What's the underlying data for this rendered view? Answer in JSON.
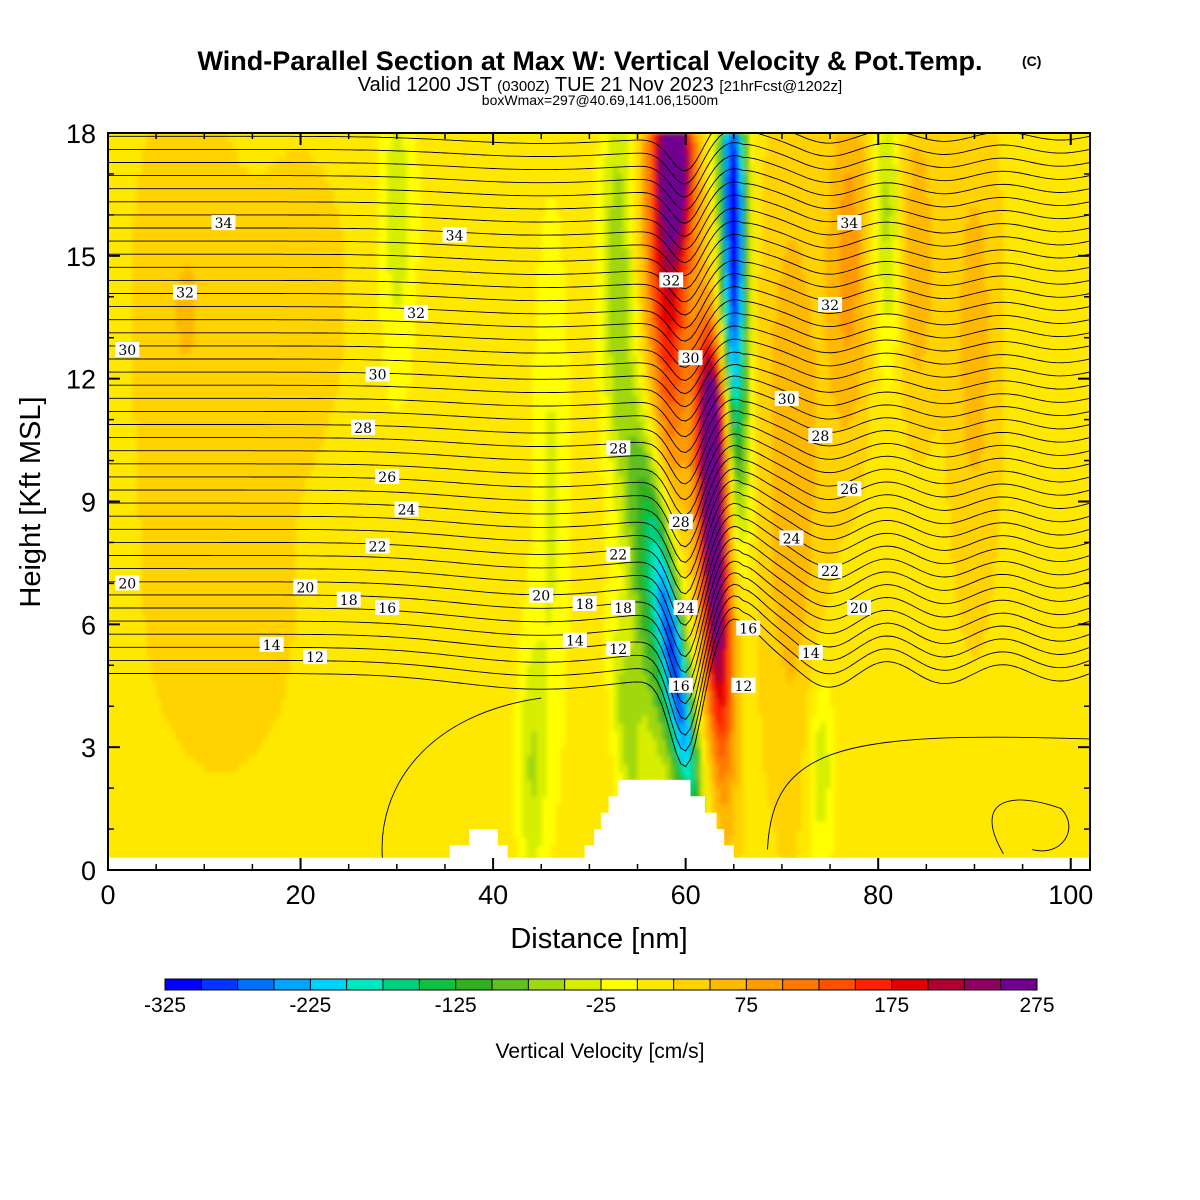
{
  "title": {
    "main": "Wind-Parallel Section at Max W: Vertical Velocity & Pot.Temp.",
    "copyright": "(C)",
    "valid_prefix": "Valid 1200 JST",
    "valid_zulu": "(0300Z)",
    "valid_date": "TUE 21 Nov 2023",
    "forecast": "[21hrFcst@1202z]",
    "boxinfo": "boxWmax=297@40.69,141.06,1500m"
  },
  "chart_data": {
    "type": "heatmap",
    "xlabel": "Distance [nm]",
    "ylabel": "Height [Kft MSL]",
    "xlim": [
      0,
      102
    ],
    "ylim": [
      0,
      18
    ],
    "x_ticks": [
      0,
      20,
      40,
      60,
      80,
      100
    ],
    "y_ticks": [
      0,
      3,
      6,
      9,
      12,
      15,
      18
    ],
    "colorbar": {
      "label": "Vertical Velocity [cm/s]",
      "tick_labels": [
        "-325",
        "-225",
        "-125",
        "-25",
        "75",
        "175",
        "275"
      ],
      "levels": [
        -325,
        -300,
        -275,
        -250,
        -225,
        -200,
        -175,
        -150,
        -125,
        -100,
        -75,
        -50,
        -25,
        0,
        25,
        50,
        75,
        100,
        125,
        150,
        175,
        200,
        225,
        250,
        275
      ],
      "colors": [
        "#0000ff",
        "#0035ff",
        "#0070ff",
        "#00a5ff",
        "#00d2ff",
        "#00e8c0",
        "#00d080",
        "#10c040",
        "#30b020",
        "#60c020",
        "#a0d810",
        "#d8ee00",
        "#ffff00",
        "#ffe800",
        "#ffd200",
        "#ffb800",
        "#ff9a00",
        "#ff7800",
        "#ff5000",
        "#ff2000",
        "#e00000",
        "#b00030",
        "#900060",
        "#700090"
      ]
    },
    "vertical_velocity_features": [
      {
        "x": 58,
        "y": 14.5,
        "value": 175,
        "sx": 1.6,
        "sy": 3.5,
        "tilt": -0.12
      },
      {
        "x": 59,
        "y": 17.5,
        "value": 250,
        "sx": 1.3,
        "sy": 1.6,
        "tilt": -0.1
      },
      {
        "x": 63,
        "y": 7.5,
        "value": 275,
        "sx": 1.1,
        "sy": 3.5,
        "tilt": -0.17
      },
      {
        "x": 63,
        "y": 11,
        "value": 175,
        "sx": 1.0,
        "sy": 1.5,
        "tilt": -0.1
      },
      {
        "x": 65,
        "y": 16.5,
        "value": -325,
        "sx": 0.9,
        "sy": 2.5,
        "tilt": -0.08
      },
      {
        "x": 65,
        "y": 12,
        "value": -175,
        "sx": 0.9,
        "sy": 2.6,
        "tilt": -0.15
      },
      {
        "x": 59,
        "y": 4.8,
        "value": -275,
        "sx": 1.0,
        "sy": 2.8,
        "tilt": -0.5
      },
      {
        "x": 56,
        "y": 7,
        "value": -125,
        "sx": 1.4,
        "sy": 3.2,
        "tilt": -0.35
      },
      {
        "x": 54,
        "y": 3.5,
        "value": -75,
        "sx": 1.0,
        "sy": 1.8,
        "tilt": -0.3
      },
      {
        "x": 53,
        "y": 15,
        "value": -75,
        "sx": 1.2,
        "sy": 3.5,
        "tilt": 0
      },
      {
        "x": 71,
        "y": 10,
        "value": 60,
        "sx": 2.5,
        "sy": 6.0,
        "tilt": 0
      },
      {
        "x": 77,
        "y": 15,
        "value": 75,
        "sx": 1.6,
        "sy": 3.5,
        "tilt": 0
      },
      {
        "x": 81,
        "y": 16,
        "value": -75,
        "sx": 1.0,
        "sy": 2.5,
        "tilt": 0
      },
      {
        "x": 84,
        "y": 15,
        "value": 60,
        "sx": 1.5,
        "sy": 3.0,
        "tilt": 0
      },
      {
        "x": 90,
        "y": 13,
        "value": 50,
        "sx": 2.0,
        "sy": 5.0,
        "tilt": 0
      },
      {
        "x": 30,
        "y": 16,
        "value": -50,
        "sx": 1.3,
        "sy": 2.8,
        "tilt": 0
      },
      {
        "x": 46,
        "y": 9,
        "value": -40,
        "sx": 1.2,
        "sy": 4.5,
        "tilt": 0
      },
      {
        "x": 44,
        "y": 2.5,
        "value": -60,
        "sx": 1.0,
        "sy": 2.2,
        "tilt": 0
      },
      {
        "x": 74,
        "y": 2.5,
        "value": -60,
        "sx": 1.0,
        "sy": 1.8,
        "tilt": 0
      },
      {
        "x": 8,
        "y": 14,
        "value": 40,
        "sx": 4.0,
        "sy": 4.0,
        "tilt": 0
      },
      {
        "x": 20,
        "y": 14,
        "value": 30,
        "sx": 4.0,
        "sy": 3.0,
        "tilt": 0
      },
      {
        "x": 12,
        "y": 6,
        "value": 30,
        "sx": 6.0,
        "sy": 3.0,
        "tilt": 0
      }
    ],
    "potential_temperature_labels": [
      {
        "text": "34",
        "x": 12,
        "y": 15.8
      },
      {
        "text": "34",
        "x": 36,
        "y": 15.5
      },
      {
        "text": "32",
        "x": 8,
        "y": 14.1
      },
      {
        "text": "32",
        "x": 32,
        "y": 13.6
      },
      {
        "text": "30",
        "x": 2,
        "y": 12.7
      },
      {
        "text": "30",
        "x": 28,
        "y": 12.1
      },
      {
        "text": "28",
        "x": 26.5,
        "y": 10.8
      },
      {
        "text": "26",
        "x": 29,
        "y": 9.6
      },
      {
        "text": "24",
        "x": 31,
        "y": 8.8
      },
      {
        "text": "22",
        "x": 28,
        "y": 7.9
      },
      {
        "text": "20",
        "x": 2,
        "y": 7.0
      },
      {
        "text": "20",
        "x": 20.5,
        "y": 6.9
      },
      {
        "text": "18",
        "x": 25,
        "y": 6.6
      },
      {
        "text": "16",
        "x": 29,
        "y": 6.4
      },
      {
        "text": "14",
        "x": 17,
        "y": 5.5
      },
      {
        "text": "12",
        "x": 21.5,
        "y": 5.2
      },
      {
        "text": "20",
        "x": 45,
        "y": 6.7
      },
      {
        "text": "18",
        "x": 49.5,
        "y": 6.5
      },
      {
        "text": "14",
        "x": 48.5,
        "y": 5.6
      },
      {
        "text": "12",
        "x": 53,
        "y": 5.4
      },
      {
        "text": "18",
        "x": 53.5,
        "y": 6.4
      },
      {
        "text": "22",
        "x": 53,
        "y": 7.7
      },
      {
        "text": "28",
        "x": 53,
        "y": 10.3
      },
      {
        "text": "32",
        "x": 58.5,
        "y": 14.4
      },
      {
        "text": "30",
        "x": 60.5,
        "y": 12.5
      },
      {
        "text": "28",
        "x": 59.5,
        "y": 8.5
      },
      {
        "text": "24",
        "x": 60,
        "y": 6.4
      },
      {
        "text": "16",
        "x": 59.5,
        "y": 4.5
      },
      {
        "text": "16",
        "x": 66.5,
        "y": 5.9
      },
      {
        "text": "12",
        "x": 66,
        "y": 4.5
      },
      {
        "text": "34",
        "x": 77,
        "y": 15.8
      },
      {
        "text": "32",
        "x": 75,
        "y": 13.8
      },
      {
        "text": "30",
        "x": 70.5,
        "y": 11.5
      },
      {
        "text": "28",
        "x": 74,
        "y": 10.6
      },
      {
        "text": "26",
        "x": 77,
        "y": 9.3
      },
      {
        "text": "24",
        "x": 71,
        "y": 8.1
      },
      {
        "text": "22",
        "x": 75,
        "y": 7.3
      },
      {
        "text": "20",
        "x": 78,
        "y": 6.4
      },
      {
        "text": "14",
        "x": 73,
        "y": 5.3
      }
    ]
  }
}
